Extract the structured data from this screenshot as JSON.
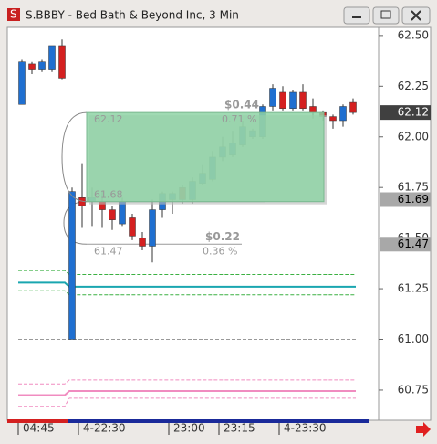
{
  "chart_data": {
    "type": "candlestick",
    "title": "S.BBBY - Bed Bath & Beyond Inc, 3 Min",
    "categories": [
      "04:45",
      null,
      null,
      null,
      null,
      null,
      "4-22:30",
      null,
      null,
      null,
      null,
      null,
      null,
      null,
      null,
      "23:00",
      null,
      null,
      null,
      null,
      "23:15",
      null,
      null,
      null,
      null,
      null,
      "4-23:30",
      null,
      null,
      null,
      null,
      null,
      null,
      null
    ],
    "open": [
      62.16,
      62.36,
      62.33,
      62.33,
      62.45,
      61.0,
      61.7,
      61.68,
      61.68,
      61.64,
      61.57,
      61.6,
      61.5,
      61.46,
      61.64,
      61.69,
      61.75,
      61.69,
      61.77,
      61.79,
      61.9,
      61.91,
      61.96,
      62.0,
      62.0,
      62.15,
      62.22,
      62.14,
      62.22,
      62.15,
      62.12,
      62.1,
      62.08,
      62.17
    ],
    "high": [
      62.38,
      62.37,
      62.38,
      62.45,
      62.48,
      61.75,
      61.87,
      61.75,
      61.73,
      61.66,
      61.7,
      61.62,
      61.53,
      61.69,
      61.73,
      61.73,
      61.76,
      61.8,
      61.86,
      61.93,
      62.0,
      62.03,
      62.08,
      62.04,
      62.16,
      62.26,
      62.25,
      62.23,
      62.26,
      62.19,
      62.13,
      62.11,
      62.16,
      62.19
    ],
    "low": [
      62.16,
      62.31,
      62.32,
      62.32,
      62.28,
      61.0,
      61.55,
      61.56,
      61.55,
      61.54,
      61.56,
      61.49,
      61.44,
      61.38,
      61.6,
      61.62,
      61.67,
      61.67,
      61.76,
      61.78,
      61.88,
      61.9,
      61.95,
      61.99,
      61.99,
      62.13,
      62.13,
      62.13,
      62.13,
      62.09,
      62.08,
      62.04,
      62.05,
      62.11
    ],
    "close": [
      62.37,
      62.33,
      62.37,
      62.45,
      62.29,
      61.73,
      61.66,
      61.7,
      61.64,
      61.59,
      61.68,
      61.51,
      61.46,
      61.64,
      61.72,
      61.72,
      61.69,
      61.78,
      61.82,
      61.9,
      61.95,
      61.97,
      62.05,
      62.03,
      62.15,
      62.24,
      62.14,
      62.22,
      62.14,
      62.12,
      62.1,
      62.08,
      62.15,
      62.12
    ],
    "up_color": "#1f6fd0",
    "down_color": "#d42020",
    "ylim": [
      60.61,
      62.54
    ],
    "yticks": [
      {
        "value": 62.5,
        "label": "62.50"
      },
      62.25,
      {
        "value": 62.0,
        "label": "62.00"
      },
      61.75,
      {
        "value": 61.5,
        "label": "61.50"
      },
      61.25,
      {
        "value": 61.0,
        "label": "61.00"
      },
      60.75
    ],
    "grid": false,
    "price_tags": [
      {
        "value": 62.12,
        "color": "#404040",
        "text_color": "#ffffff"
      },
      {
        "value": 61.69,
        "color": "#a8a8a8",
        "text_color": "#000000"
      },
      {
        "value": 61.47,
        "color": "#a8a8a8",
        "text_color": "#000000"
      }
    ],
    "annotations": [
      {
        "top": 62.12,
        "bottom": 61.68,
        "change": "$0.44",
        "percent": "0.71 %",
        "fill": "#8fd4a6"
      },
      {
        "top": 61.68,
        "bottom": 61.47,
        "change": "$0.22",
        "percent": "0.36 %"
      }
    ],
    "overlay_lines": [
      {
        "values": [
          61.34,
          61.32
        ],
        "color": "#3cb043",
        "dash": true
      },
      {
        "values": [
          61.28,
          61.26
        ],
        "color": "#1aa6b0",
        "dash": false
      },
      {
        "values": [
          61.24,
          61.22
        ],
        "color": "#3cb043",
        "dash": true
      },
      {
        "values": [
          61.0,
          61.0
        ],
        "color": "#999999",
        "dash": true
      },
      {
        "values": [
          60.78,
          60.8
        ],
        "color": "#f08cc0",
        "dash": true
      },
      {
        "values": [
          60.725,
          60.745
        ],
        "color": "#f08cc0",
        "dash": false
      },
      {
        "values": [
          60.67,
          60.71
        ],
        "color": "#f08cc0",
        "dash": true
      }
    ]
  }
}
